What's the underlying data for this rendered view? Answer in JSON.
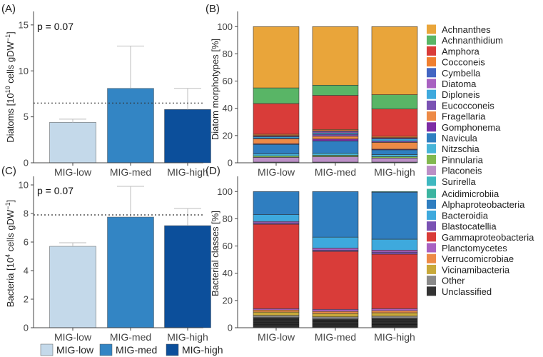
{
  "colors": {
    "MIG-low": "#c4d9ea",
    "MIG-med": "#3385c4",
    "MIG-high": "#0c4f9b",
    "Achnanthes": "#e9a53a",
    "Achnanthidium": "#59b566",
    "Amphora": "#d93c39",
    "Cocconeis": "#f07f2f",
    "Cymbella": "#4265c2",
    "Diatoma": "#a861c1",
    "Diploneis": "#3ea9dd",
    "Eucocconeis": "#7a52b3",
    "Fragellaria": "#ed8a46",
    "Gomphonema": "#7d2da4",
    "Navicula": "#2f7ec0",
    "Nitzschia": "#47b4d8",
    "Pinnularia": "#82b84f",
    "Placoneis": "#bb8fc6",
    "Surirella": "#3fb8c0",
    "Acidimicrobiia": "#3bb4a0",
    "Alphaproteobacteria": "#2f7ec0",
    "Bacteroidia": "#3ea9dd",
    "Blastocatellia": "#7a52b3",
    "Gammaproteobacteria": "#d93c39",
    "Planctomycetes": "#a861c1",
    "Verrucomicrobiae": "#ed8a46",
    "Vicinamibacteria": "#c8a93a",
    "Other": "#8a8a8a",
    "Unclassified": "#333333"
  },
  "legend": {
    "items": [
      "MIG-low",
      "MIG-med",
      "MIG-high"
    ]
  },
  "chart_data": [
    {
      "panel": "(A)",
      "type": "bar",
      "categories": [
        "MIG-low",
        "MIG-med",
        "MIG-high"
      ],
      "values": [
        4.4,
        8.1,
        5.8
      ],
      "errors": [
        0.35,
        4.6,
        2.3
      ],
      "reference_line": 6.5,
      "annotation": "p = 0.07",
      "ylabel_main": "Diatoms [10",
      "ylabel_exp": "10",
      "ylabel_rest": " cells gDW",
      "ylabel_neg": "−1",
      "ylim": [
        0,
        16
      ],
      "yticks": [
        0,
        5,
        10,
        15
      ],
      "ytick_labels": [
        "0",
        "5",
        "10",
        "15"
      ]
    },
    {
      "panel": "(B)",
      "type": "bar",
      "stacked": true,
      "categories": [
        "MIG-low",
        "MIG-med",
        "MIG-high"
      ],
      "ylabel": "Diatom morphotypes [%]",
      "ylim": [
        0,
        108
      ],
      "yticks": [
        0,
        20,
        40,
        60,
        80,
        100
      ],
      "ytick_labels": [
        "0",
        "20",
        "40",
        "60",
        "80",
        "100"
      ],
      "legend": [
        "Achnanthes",
        "Achnanthidium",
        "Amphora",
        "Cocconeis",
        "Cymbella",
        "Diatoma",
        "Diploneis",
        "Eucocconeis",
        "Fragellaria",
        "Gomphonema",
        "Navicula",
        "Nitzschia",
        "Pinnularia",
        "Placoneis",
        "Surirella"
      ],
      "series": [
        {
          "name": "Surirella",
          "values": [
            0.5,
            0.5,
            0.5
          ]
        },
        {
          "name": "Placoneis",
          "values": [
            3.5,
            4.0,
            3.0
          ]
        },
        {
          "name": "Pinnularia",
          "values": [
            1.0,
            1.0,
            1.0
          ]
        },
        {
          "name": "Nitzschia",
          "values": [
            1.5,
            1.5,
            1.5
          ]
        },
        {
          "name": "Navicula",
          "values": [
            7.0,
            9.0,
            3.5
          ]
        },
        {
          "name": "Gomphonema",
          "values": [
            0.5,
            1.5,
            0.5
          ]
        },
        {
          "name": "Fragellaria",
          "values": [
            3.5,
            2.0,
            5.0
          ]
        },
        {
          "name": "Eucocconeis",
          "values": [
            0.5,
            1.5,
            1.0
          ]
        },
        {
          "name": "Diploneis",
          "values": [
            1.0,
            1.0,
            1.5
          ]
        },
        {
          "name": "Diatoma",
          "values": [
            0.5,
            1.0,
            0.5
          ]
        },
        {
          "name": "Cymbella",
          "values": [
            0.5,
            0.5,
            0.5
          ]
        },
        {
          "name": "Cocconeis",
          "values": [
            1.0,
            1.0,
            1.0
          ]
        },
        {
          "name": "Amphora",
          "values": [
            22.5,
            25.0,
            20.0
          ]
        },
        {
          "name": "Achnanthidium",
          "values": [
            11.5,
            7.5,
            10.5
          ]
        },
        {
          "name": "Achnanthes",
          "values": [
            45.0,
            43.0,
            50.0
          ]
        }
      ]
    },
    {
      "panel": "(C)",
      "type": "bar",
      "categories": [
        "MIG-low",
        "MIG-med",
        "MIG-high"
      ],
      "values": [
        5.7,
        7.75,
        7.15
      ],
      "errors": [
        0.25,
        2.15,
        1.2
      ],
      "reference_line": 7.9,
      "annotation": "p = 0.07",
      "ylabel_main": "Bacteria [10",
      "ylabel_exp": "4",
      "ylabel_rest": " cells gDW",
      "ylabel_neg": "−1",
      "ylim": [
        0,
        10.3
      ],
      "yticks": [
        0,
        2,
        4,
        6,
        8,
        10
      ],
      "ytick_labels": [
        "0",
        "2",
        "4",
        "6",
        "8",
        "10"
      ]
    },
    {
      "panel": "(D)",
      "type": "bar",
      "stacked": true,
      "categories": [
        "MIG-low",
        "MIG-med",
        "MIG-high"
      ],
      "ylabel": "Bacterial classes [%]",
      "ylim": [
        0,
        108
      ],
      "yticks": [
        0,
        20,
        40,
        60,
        80,
        100
      ],
      "ytick_labels": [
        "0",
        "20",
        "40",
        "60",
        "80",
        "100"
      ],
      "legend": [
        "Acidimicrobiia",
        "Alphaproteobacteria",
        "Bacteroidia",
        "Blastocatellia",
        "Gammaproteobacteria",
        "Planctomycetes",
        "Verrucomicrobiae",
        "Vicinamibacteria",
        "Other",
        "Unclassified"
      ],
      "series": [
        {
          "name": "Unclassified",
          "values": [
            7.5,
            6.5,
            7.0
          ]
        },
        {
          "name": "Other",
          "values": [
            1.5,
            1.5,
            1.5
          ]
        },
        {
          "name": "Vicinamibacteria",
          "values": [
            2.5,
            2.5,
            2.5
          ]
        },
        {
          "name": "Verrucomicrobiae",
          "values": [
            1.5,
            1.5,
            1.5
          ]
        },
        {
          "name": "Planctomycetes",
          "values": [
            1.0,
            1.5,
            1.5
          ]
        },
        {
          "name": "Gammaproteobacteria",
          "values": [
            62.0,
            42.5,
            40.0
          ]
        },
        {
          "name": "Blastocatellia",
          "values": [
            1.0,
            1.0,
            1.5
          ]
        },
        {
          "name": "Planctomycetes",
          "values": [
            1.0,
            1.5,
            1.5
          ]
        },
        {
          "name": "Bacteroidia",
          "values": [
            5.0,
            8.0,
            8.0
          ]
        },
        {
          "name": "Alphaproteobacteria",
          "values": [
            17.0,
            33.5,
            34.5
          ]
        },
        {
          "name": "Acidimicrobiia",
          "values": [
            0.0,
            0.0,
            0.5
          ]
        }
      ]
    }
  ]
}
